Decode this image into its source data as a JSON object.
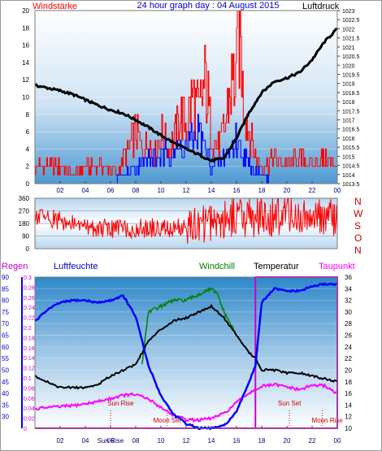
{
  "header": {
    "title": "24 hour graph day : 04 August 2015",
    "left_label": "Windstärke",
    "right_label": "Luftdruck"
  },
  "colors": {
    "wind": "#ff0000",
    "gust": "#0000ff",
    "pressure": "#000000",
    "humidity": "#0000ff",
    "temperature": "#000000",
    "windchill": "#008000",
    "dewpoint": "#ff00ff",
    "rain_axis": "#0000ff",
    "frame_magenta": "#cc00cc",
    "title_blue": "#0000cc"
  },
  "chart_data": [
    {
      "type": "line",
      "panel": "wind-pressure",
      "left_axis": {
        "label": "Windstärke",
        "range": [
          0,
          20
        ],
        "ticks": [
          "0",
          "2",
          "4",
          "6",
          "8",
          "10",
          "12",
          "14",
          "16",
          "18",
          "20"
        ]
      },
      "right_axis": {
        "label": "Luftdruck",
        "range": [
          1013.5,
          1023
        ],
        "ticks": [
          "1013.5",
          "1014",
          "1014.5",
          "1015",
          "1015.5",
          "1016",
          "1016.5",
          "1017",
          "1017.5",
          "1018",
          "1018.5",
          "1019",
          "1019.5",
          "1020",
          "1020.5",
          "1021",
          "1021.5",
          "1022",
          "1022.5",
          "1023"
        ]
      },
      "x_ticks": [
        "02",
        "04",
        "06",
        "08",
        "10",
        "12",
        "14",
        "16",
        "18",
        "20",
        "22",
        "00"
      ],
      "x_range": [
        0,
        24
      ],
      "series": [
        {
          "axis": "right",
          "x": [
            0,
            1,
            2,
            3,
            4,
            5,
            6,
            7,
            8,
            9,
            10,
            11,
            12,
            13,
            14,
            15,
            16,
            17,
            18,
            19,
            20,
            21,
            22,
            23,
            24
          ],
          "values": [
            1018.9,
            1018.75,
            1018.6,
            1018.4,
            1018.1,
            1017.8,
            1017.55,
            1017.35,
            1017.0,
            1016.6,
            1016.15,
            1015.75,
            1015.4,
            1015.1,
            1014.75,
            1014.9,
            1016.0,
            1017.4,
            1018.5,
            1019.1,
            1019.3,
            1019.6,
            1020.3,
            1021.3,
            1022.0
          ]
        },
        {
          "axis": "left",
          "x": [
            0,
            1,
            2,
            3,
            4,
            5,
            6,
            6.5,
            7,
            7.5,
            8,
            8.5,
            9,
            9.5,
            10,
            10.5,
            11,
            11.5,
            12,
            12.5,
            13,
            13.5,
            14,
            14.5,
            15,
            15.5,
            16,
            16.25,
            16.5,
            17,
            17.5,
            18,
            19,
            20,
            21,
            22,
            23,
            24
          ],
          "values": [
            2,
            2,
            2,
            1,
            2,
            2,
            2,
            1,
            3,
            4,
            6,
            4,
            5,
            3,
            6,
            4,
            5,
            8,
            7,
            10,
            8,
            12,
            6,
            4,
            6,
            11,
            13,
            19,
            10,
            6,
            3,
            2,
            3,
            2,
            3,
            2,
            3,
            2
          ]
        },
        {
          "axis": "left",
          "x": [
            0,
            6,
            7,
            8,
            9,
            10,
            11,
            12,
            13,
            14,
            15,
            16,
            17,
            18,
            19,
            24
          ],
          "values": [
            0,
            0,
            1,
            2,
            3,
            3,
            4,
            4,
            6,
            2,
            3,
            5,
            2,
            1,
            0,
            0
          ]
        }
      ]
    },
    {
      "type": "line",
      "panel": "wind-direction",
      "left_axis": {
        "range": [
          0,
          360
        ],
        "ticks": [
          "0",
          "90",
          "180",
          "270",
          "360"
        ]
      },
      "right_labels": [
        "N",
        "W",
        "S",
        "O",
        "N"
      ],
      "x_range": [
        0,
        24
      ],
      "series": [
        {
          "x": [
            0,
            1,
            2,
            3,
            4,
            5,
            6,
            7,
            8,
            9,
            10,
            11,
            12,
            13,
            14,
            15,
            16,
            17,
            18,
            19,
            20,
            21,
            22,
            23,
            24
          ],
          "values": [
            230,
            225,
            200,
            170,
            160,
            150,
            145,
            150,
            140,
            150,
            150,
            140,
            150,
            160,
            200,
            220,
            240,
            230,
            210,
            220,
            250,
            230,
            210,
            220,
            240
          ]
        }
      ]
    },
    {
      "type": "line",
      "panel": "humidity-temperature",
      "left_axis_outer": {
        "label": "Regen",
        "range": [
          0,
          0.3
        ],
        "ticks": [
          "0",
          "0.02",
          "0.04",
          "0.06",
          "0.08",
          "0.1",
          "0.12",
          "0.14",
          "0.16",
          "0.18",
          "0.2",
          "0.22",
          "0.24",
          "0.26",
          "0.28",
          "0.3"
        ]
      },
      "left_axis_inner": {
        "label": "Luftfeuchte",
        "range": [
          25,
          90
        ],
        "ticks": [
          "30",
          "35",
          "40",
          "45",
          "50",
          "55",
          "60",
          "65",
          "70",
          "75",
          "80",
          "85",
          "90"
        ]
      },
      "right_axis": {
        "label": "Temperatur",
        "range": [
          10,
          36
        ],
        "ticks": [
          "10",
          "12",
          "14",
          "16",
          "18",
          "20",
          "22",
          "24",
          "26",
          "28",
          "30",
          "32",
          "34",
          "36"
        ]
      },
      "legend": [
        "Luftfeuchte",
        "Windchill",
        "Temperatur",
        "Taupunkt"
      ],
      "x_ticks": [
        "02",
        "04",
        "06",
        "08",
        "10",
        "12",
        "14",
        "16",
        "18",
        "20",
        "22",
        "00"
      ],
      "x_range": [
        0,
        24
      ],
      "annotations": [
        "Sun Rise",
        "Moon Set",
        "Sun Set",
        "Moon Rise",
        "Sun Rise"
      ],
      "series": [
        {
          "name": "Luftfeuchte",
          "axis": "inner",
          "x": [
            0,
            1,
            2,
            3,
            4,
            5,
            6,
            7,
            8,
            9,
            10,
            11,
            12,
            13,
            14,
            15,
            16,
            17,
            17.5,
            18,
            19,
            20,
            21,
            22,
            23,
            24
          ],
          "values": [
            71,
            76,
            79,
            80,
            80,
            79,
            80,
            82,
            73,
            52,
            39,
            31,
            27,
            25,
            25,
            26,
            32,
            45,
            52,
            79,
            85,
            84,
            84,
            86,
            87,
            87
          ]
        },
        {
          "name": "Temperatur",
          "axis": "right",
          "x": [
            0,
            1,
            2,
            3,
            4,
            5,
            6,
            7,
            8,
            9,
            10,
            11,
            12,
            13,
            14,
            14.5,
            15,
            16,
            17,
            17.5,
            18,
            19,
            20,
            21,
            22,
            23,
            24
          ],
          "values": [
            19,
            18,
            17,
            17,
            17,
            17.5,
            19,
            20,
            21,
            25,
            27,
            28.5,
            29,
            30,
            31,
            30,
            29,
            26,
            23,
            22,
            20,
            20,
            19.5,
            19.5,
            19,
            18.5,
            18
          ]
        },
        {
          "name": "Windchill",
          "axis": "right",
          "x": [
            8.5,
            9,
            10,
            11,
            12,
            13,
            14,
            14.5,
            15,
            16
          ],
          "values": [
            21,
            30,
            31,
            32,
            32,
            33,
            34,
            33,
            30,
            26
          ]
        },
        {
          "name": "Taupunkt",
          "axis": "right",
          "x": [
            0,
            1,
            2,
            3,
            4,
            5,
            6,
            7,
            8,
            9,
            10,
            11,
            12,
            13,
            14,
            15,
            16,
            17,
            18,
            19,
            20,
            21,
            22,
            23,
            24
          ],
          "values": [
            13.3,
            13.6,
            13.7,
            13.9,
            14.2,
            14.6,
            15.1,
            15.7,
            15.8,
            15.0,
            13.6,
            12.2,
            11.5,
            11.4,
            11.7,
            12.5,
            14.4,
            16.1,
            17.2,
            17.5,
            17.1,
            16.6,
            17.4,
            17.3,
            16.0
          ]
        }
      ]
    }
  ]
}
